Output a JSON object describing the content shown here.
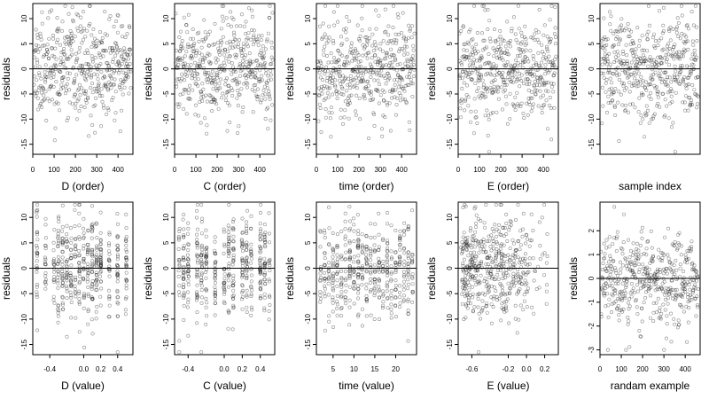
{
  "chart_data": [
    {
      "type": "scatter",
      "xlabel": "D (order)",
      "ylabel": "residuals",
      "xlim": [
        0,
        470
      ],
      "ylim": [
        -17,
        13
      ],
      "x_ticks": [
        "0",
        "100",
        "200",
        "300",
        "400"
      ],
      "x_tick_values": [
        0,
        100,
        200,
        300,
        400
      ],
      "y_ticks": [
        "10",
        "5",
        "0",
        "-5",
        "-10",
        "-15"
      ],
      "y_tick_values": [
        10,
        5,
        0,
        -5,
        -10,
        -15
      ],
      "reference_line": 0,
      "points": {
        "generator": "order",
        "n": 460,
        "x_min": 0,
        "x_max": 460,
        "y_mean": 0,
        "y_sd": 5,
        "y_min": -16.5,
        "y_max": 12.5,
        "seed": 11
      }
    },
    {
      "type": "scatter",
      "xlabel": "C (order)",
      "ylabel": "residuals",
      "xlim": [
        0,
        470
      ],
      "ylim": [
        -17,
        13
      ],
      "x_ticks": [
        "0",
        "100",
        "200",
        "300",
        "400"
      ],
      "x_tick_values": [
        0,
        100,
        200,
        300,
        400
      ],
      "y_ticks": [
        "10",
        "5",
        "0",
        "-5",
        "-10",
        "-15"
      ],
      "y_tick_values": [
        10,
        5,
        0,
        -5,
        -10,
        -15
      ],
      "reference_line": 0,
      "points": {
        "generator": "order",
        "n": 460,
        "x_min": 0,
        "x_max": 460,
        "y_mean": 0,
        "y_sd": 5,
        "y_min": -16.5,
        "y_max": 12.5,
        "seed": 23
      }
    },
    {
      "type": "scatter",
      "xlabel": "time (order)",
      "ylabel": "residuals",
      "xlim": [
        0,
        470
      ],
      "ylim": [
        -17,
        13
      ],
      "x_ticks": [
        "0",
        "100",
        "200",
        "300",
        "400"
      ],
      "x_tick_values": [
        0,
        100,
        200,
        300,
        400
      ],
      "y_ticks": [
        "10",
        "5",
        "0",
        "-5",
        "-10",
        "-15"
      ],
      "y_tick_values": [
        10,
        5,
        0,
        -5,
        -10,
        -15
      ],
      "reference_line": 0,
      "points": {
        "generator": "order",
        "n": 460,
        "x_min": 0,
        "x_max": 460,
        "y_mean": 0,
        "y_sd": 5,
        "y_min": -16.5,
        "y_max": 12.5,
        "seed": 37
      }
    },
    {
      "type": "scatter",
      "xlabel": "E (order)",
      "ylabel": "residuals",
      "xlim": [
        0,
        470
      ],
      "ylim": [
        -17,
        13
      ],
      "x_ticks": [
        "0",
        "100",
        "200",
        "300",
        "400"
      ],
      "x_tick_values": [
        0,
        100,
        200,
        300,
        400
      ],
      "y_ticks": [
        "10",
        "5",
        "0",
        "-5",
        "-10",
        "-15"
      ],
      "y_tick_values": [
        10,
        5,
        0,
        -5,
        -10,
        -15
      ],
      "reference_line": 0,
      "points": {
        "generator": "order",
        "n": 460,
        "x_min": 0,
        "x_max": 460,
        "y_mean": 0,
        "y_sd": 5,
        "y_min": -16.5,
        "y_max": 12.5,
        "seed": 41
      }
    },
    {
      "type": "scatter",
      "xlabel": "sample index",
      "ylabel": "residuals",
      "xlim": [
        0,
        470
      ],
      "ylim": [
        -17,
        13
      ],
      "x_ticks": [],
      "x_tick_values": [],
      "y_ticks": [
        "10",
        "5",
        "0",
        "-5",
        "-10",
        "-15"
      ],
      "y_tick_values": [
        10,
        5,
        0,
        -5,
        -10,
        -15
      ],
      "reference_line": 0,
      "points": {
        "generator": "order",
        "n": 460,
        "x_min": 0,
        "x_max": 460,
        "y_mean": 0,
        "y_sd": 5,
        "y_min": -16.5,
        "y_max": 12.5,
        "seed": 53
      }
    },
    {
      "type": "scatter",
      "xlabel": "D (value)",
      "ylabel": "residuals",
      "xlim": [
        -0.6,
        0.58
      ],
      "ylim": [
        -17,
        13
      ],
      "x_ticks": [
        "-0.4",
        "0.0",
        "0.2",
        "0.4"
      ],
      "x_tick_values": [
        -0.4,
        0.0,
        0.2,
        0.4
      ],
      "y_ticks": [
        "10",
        "5",
        "0",
        "-5",
        "-10",
        "-15"
      ],
      "y_tick_values": [
        10,
        5,
        0,
        -5,
        -10,
        -15
      ],
      "reference_line": 0,
      "points": {
        "generator": "discrete",
        "n": 460,
        "x_levels": [
          -0.55,
          -0.45,
          -0.35,
          -0.3,
          -0.25,
          -0.2,
          -0.15,
          -0.1,
          -0.05,
          0.0,
          0.05,
          0.1,
          0.15,
          0.2,
          0.3,
          0.4,
          0.5
        ],
        "x_jitter": 0.006,
        "y_mean": 0,
        "y_sd": 5,
        "y_min": -16.5,
        "y_max": 12.5,
        "seed": 61
      }
    },
    {
      "type": "scatter",
      "xlabel": "C (value)",
      "ylabel": "residuals",
      "xlim": [
        -0.55,
        0.56
      ],
      "ylim": [
        -17,
        13
      ],
      "x_ticks": [
        "-0.4",
        "0.0",
        "0.2",
        "0.4"
      ],
      "x_tick_values": [
        -0.4,
        0.0,
        0.2,
        0.4
      ],
      "y_ticks": [
        "10",
        "5",
        "0",
        "-5",
        "-10",
        "-15"
      ],
      "y_tick_values": [
        10,
        5,
        0,
        -5,
        -10,
        -15
      ],
      "reference_line": 0,
      "points": {
        "generator": "discrete",
        "n": 460,
        "x_levels": [
          -0.5,
          -0.45,
          -0.4,
          -0.3,
          -0.25,
          -0.2,
          -0.1,
          0.0,
          0.05,
          0.1,
          0.2,
          0.25,
          0.3,
          0.4,
          0.45,
          0.5
        ],
        "x_jitter": 0.006,
        "y_mean": 0,
        "y_sd": 5,
        "y_min": -16.5,
        "y_max": 12.5,
        "seed": 73
      }
    },
    {
      "type": "scatter",
      "xlabel": "time (value)",
      "ylabel": "residuals",
      "xlim": [
        1,
        25
      ],
      "ylim": [
        -17,
        13
      ],
      "x_ticks": [
        "5",
        "10",
        "15",
        "20"
      ],
      "x_tick_values": [
        5,
        10,
        15,
        20
      ],
      "y_ticks": [
        "10",
        "5",
        "0",
        "-5",
        "-10",
        "-15"
      ],
      "y_tick_values": [
        10,
        5,
        0,
        -5,
        -10,
        -15
      ],
      "reference_line": 0,
      "points": {
        "generator": "discrete",
        "n": 460,
        "x_levels": [
          2,
          3,
          4,
          5,
          6,
          7,
          8,
          9,
          10,
          11,
          12,
          13,
          14,
          15,
          16,
          17,
          18,
          19,
          20,
          21,
          22,
          23,
          24
        ],
        "x_jitter": 0.1,
        "y_mean": 0,
        "y_sd": 5,
        "y_min": -16.5,
        "y_max": 12.5,
        "seed": 83
      }
    },
    {
      "type": "scatter",
      "xlabel": "E (value)",
      "ylabel": "residuals",
      "xlim": [
        -0.75,
        0.35
      ],
      "ylim": [
        -17,
        13
      ],
      "x_ticks": [
        "-0.6",
        "-0.2",
        "0.0",
        "0.2"
      ],
      "x_tick_values": [
        -0.6,
        -0.2,
        0.0,
        0.2
      ],
      "y_ticks": [
        "10",
        "5",
        "0",
        "-5",
        "-10",
        "-15"
      ],
      "y_tick_values": [
        10,
        5,
        0,
        -5,
        -10,
        -15
      ],
      "reference_line": 0,
      "points": {
        "generator": "continuous",
        "n": 460,
        "x_min": -0.72,
        "x_max": 0.32,
        "x_skew": 0.5,
        "y_mean": 0,
        "y_sd": 5,
        "y_min": -16.5,
        "y_max": 12.5,
        "seed": 97
      }
    },
    {
      "type": "scatter",
      "xlabel": "randam example",
      "ylabel": "residuals",
      "xlim": [
        0,
        470
      ],
      "ylim": [
        -3.2,
        3.2
      ],
      "x_ticks": [
        "0",
        "100",
        "200",
        "300",
        "400"
      ],
      "x_tick_values": [
        0,
        100,
        200,
        300,
        400
      ],
      "y_ticks": [
        "2",
        "1",
        "0",
        "-1",
        "-2",
        "-3"
      ],
      "y_tick_values": [
        2,
        1,
        0,
        -1,
        -2,
        -3
      ],
      "reference_line": 0,
      "points": {
        "generator": "order",
        "n": 460,
        "x_min": 0,
        "x_max": 460,
        "y_mean": 0,
        "y_sd": 1,
        "y_min": -3.0,
        "y_max": 3.0,
        "seed": 109
      }
    }
  ]
}
